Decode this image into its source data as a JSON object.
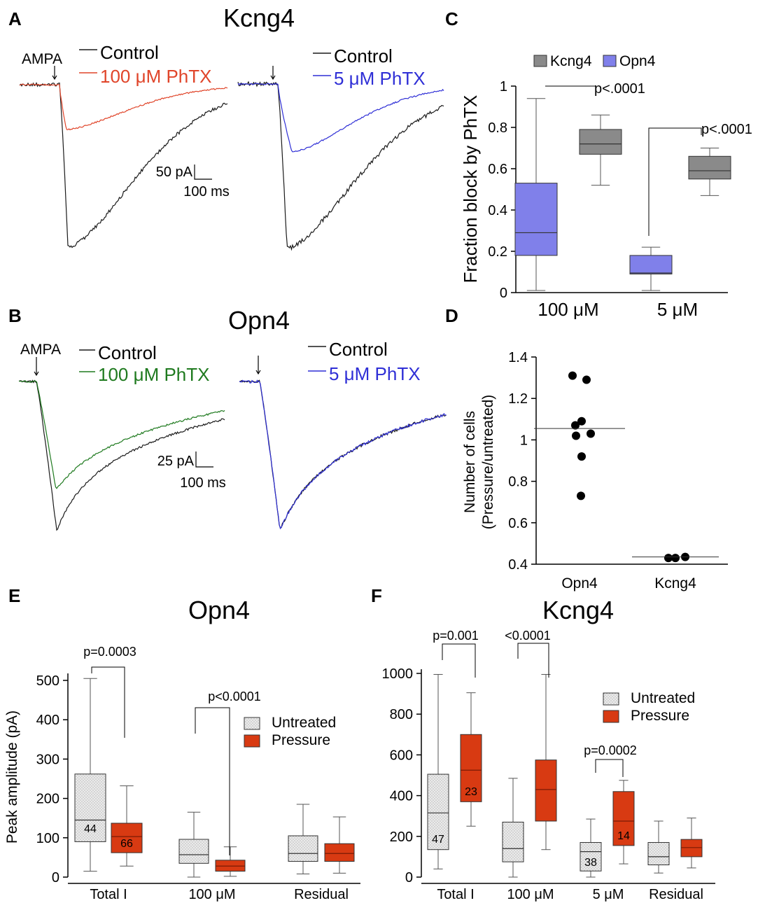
{
  "colors": {
    "control": "#1a1a1a",
    "phtx_100_A": "#e0452a",
    "phtx_5": "#2f2fd6",
    "phtx_100_B": "#1f7a1f",
    "kcng4_box": "#8a8a8a",
    "opn4_box": "#8080ea",
    "untreated_box": "#e6e6e6",
    "pressure_box": "#d83a12"
  },
  "panels": {
    "A": {
      "letter": "A",
      "title": "Kcng4",
      "stim_label": "AMPA",
      "left_legend": [
        "Control",
        "100 μM PhTX"
      ],
      "right_legend": [
        "Control",
        "5 μM PhTX"
      ],
      "scale_y": "50 pA",
      "scale_x": "100 ms"
    },
    "B": {
      "letter": "B",
      "title": "Opn4",
      "stim_label": "AMPA",
      "left_legend": [
        "Control",
        "100 μM PhTX"
      ],
      "right_legend": [
        "Control",
        "5 μM PhTX"
      ],
      "scale_y": "25 pA",
      "scale_x": "100 ms"
    },
    "C": {
      "letter": "C"
    },
    "D": {
      "letter": "D"
    },
    "E": {
      "letter": "E"
    },
    "F": {
      "letter": "F"
    }
  },
  "chart_data": [
    {
      "id": "C",
      "type": "box",
      "ylabel": "Fraction block by PhTX",
      "ylim": [
        0,
        1
      ],
      "yticks": [
        0,
        0.2,
        0.4,
        0.6,
        0.8,
        1
      ],
      "ytick_labels": [
        "0",
        "0.2",
        "0.4",
        "0.6",
        "0.8",
        "1"
      ],
      "categories": [
        "100 μM",
        "5 μM"
      ],
      "legend": [
        "Kcng4",
        "Opn4"
      ],
      "boxes": [
        {
          "group": 0,
          "series": "Opn4",
          "min": 0.01,
          "q1": 0.18,
          "median": 0.29,
          "q3": 0.53,
          "max": 0.94
        },
        {
          "group": 0,
          "series": "Kcng4",
          "min": 0.52,
          "q1": 0.67,
          "median": 0.72,
          "q3": 0.79,
          "max": 0.86
        },
        {
          "group": 1,
          "series": "Opn4",
          "min": 0.01,
          "q1": 0.09,
          "median": 0.095,
          "q3": 0.18,
          "max": 0.22
        },
        {
          "group": 1,
          "series": "Kcng4",
          "min": 0.47,
          "q1": 0.55,
          "median": 0.59,
          "q3": 0.66,
          "max": 0.7
        }
      ],
      "annotations": [
        "p<.0001",
        "p<.0001"
      ]
    },
    {
      "id": "D",
      "type": "scatter",
      "ylabel_lines": [
        "Number of cells",
        "(Pressure/untreated)"
      ],
      "ylim": [
        0.4,
        1.4
      ],
      "yticks": [
        0.4,
        0.6,
        0.8,
        1,
        1.2,
        1.4
      ],
      "ytick_labels": [
        "0.4",
        "0.6",
        "0.8",
        "1",
        "1.2",
        "1.4"
      ],
      "categories": [
        "Opn4",
        "Kcng4"
      ],
      "points": {
        "Opn4": [
          1.31,
          1.29,
          1.09,
          1.07,
          1.03,
          1.02,
          0.92,
          0.73
        ],
        "Kcng4": [
          0.43,
          0.43,
          0.435
        ]
      },
      "means": {
        "Opn4": 1.055,
        "Kcng4": 0.435
      }
    },
    {
      "id": "E",
      "type": "box",
      "title": "Opn4",
      "ylabel": "Peak amplitude (pA)",
      "ylim": [
        0,
        520
      ],
      "yticks": [
        0,
        100,
        200,
        300,
        400,
        500
      ],
      "ytick_labels": [
        "0",
        "100",
        "200",
        "300",
        "400",
        "500"
      ],
      "categories": [
        "Total I",
        "100 μM",
        "Residual"
      ],
      "legend": [
        "Untreated",
        "Pressure"
      ],
      "boxes": [
        {
          "group": 0,
          "series": "Untreated",
          "min": 15,
          "q1": 90,
          "median": 145,
          "q3": 262,
          "max": 505,
          "n": "44"
        },
        {
          "group": 0,
          "series": "Pressure",
          "min": 28,
          "q1": 62,
          "median": 103,
          "q3": 137,
          "max": 232,
          "n": "66"
        },
        {
          "group": 1,
          "series": "Untreated",
          "min": 0,
          "q1": 35,
          "median": 57,
          "q3": 96,
          "max": 165
        },
        {
          "group": 1,
          "series": "Pressure",
          "min": 2,
          "q1": 15,
          "median": 28,
          "q3": 43,
          "max": 77
        },
        {
          "group": 2,
          "series": "Untreated",
          "min": 8,
          "q1": 40,
          "median": 60,
          "q3": 105,
          "max": 185
        },
        {
          "group": 2,
          "series": "Pressure",
          "min": 10,
          "q1": 40,
          "median": 60,
          "q3": 85,
          "max": 153
        }
      ],
      "annotations": [
        "p=0.0003",
        "p<0.0001"
      ]
    },
    {
      "id": "F",
      "type": "box",
      "title": "Kcng4",
      "ylim": [
        0,
        1000
      ],
      "yticks": [
        0,
        200,
        400,
        600,
        800,
        1000
      ],
      "ytick_labels": [
        "0",
        "200",
        "400",
        "600",
        "800",
        "1000"
      ],
      "categories": [
        "Total I",
        "100 μM",
        "5 μM",
        "Residual"
      ],
      "legend": [
        "Untreated",
        "Pressure"
      ],
      "boxes": [
        {
          "group": 0,
          "series": "Untreated",
          "min": 40,
          "q1": 135,
          "median": 315,
          "q3": 505,
          "max": 995,
          "n": "47"
        },
        {
          "group": 0,
          "series": "Pressure",
          "min": 250,
          "q1": 370,
          "median": 525,
          "q3": 700,
          "max": 905,
          "n": "23"
        },
        {
          "group": 1,
          "series": "Untreated",
          "min": 0,
          "q1": 75,
          "median": 140,
          "q3": 270,
          "max": 485
        },
        {
          "group": 1,
          "series": "Pressure",
          "min": 135,
          "q1": 275,
          "median": 430,
          "q3": 575,
          "max": 995
        },
        {
          "group": 2,
          "series": "Untreated",
          "min": 0,
          "q1": 30,
          "median": 125,
          "q3": 170,
          "max": 285,
          "n": "38"
        },
        {
          "group": 2,
          "series": "Pressure",
          "min": 65,
          "q1": 155,
          "median": 275,
          "q3": 420,
          "max": 475,
          "n": "14"
        },
        {
          "group": 3,
          "series": "Untreated",
          "min": 20,
          "q1": 60,
          "median": 100,
          "q3": 170,
          "max": 275
        },
        {
          "group": 3,
          "series": "Pressure",
          "min": 45,
          "q1": 100,
          "median": 145,
          "q3": 185,
          "max": 290
        }
      ],
      "annotations": [
        "p=0.001",
        "<0.0001",
        "p=0.0002"
      ]
    }
  ]
}
